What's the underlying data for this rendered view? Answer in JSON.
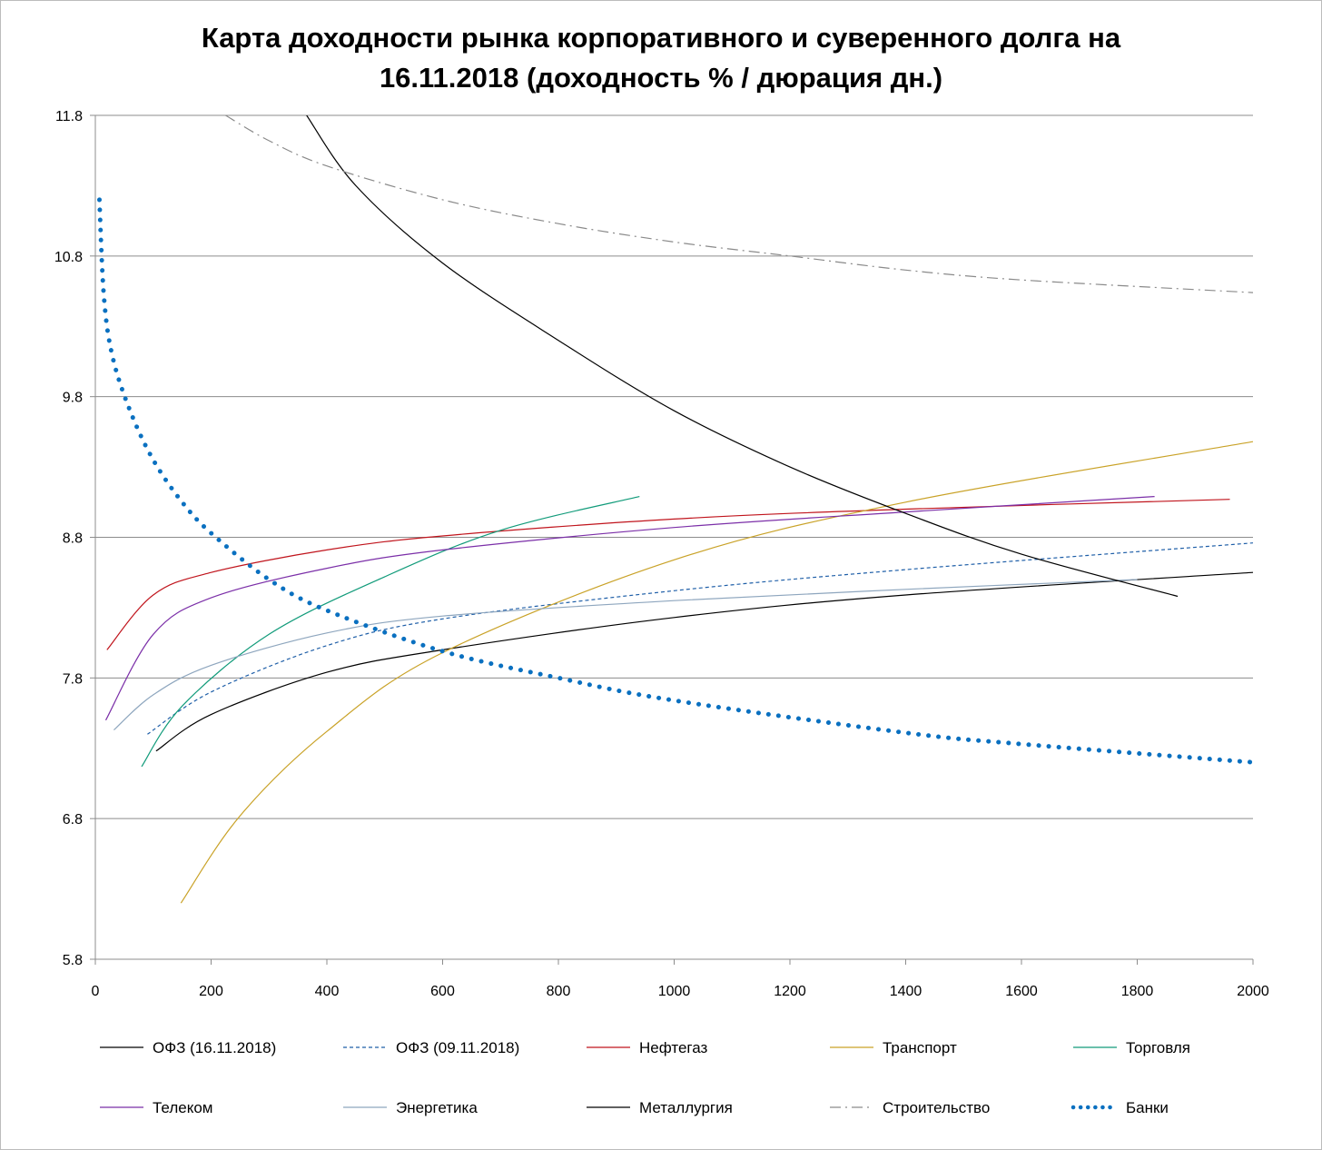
{
  "chart_data": {
    "type": "line",
    "title_line1": "Карта доходности рынка корпоративного и суверенного долга на",
    "title_line2": "16.11.2018 (доходность % / дюрация дн.)",
    "xlabel": "",
    "ylabel": "",
    "xlim": [
      0,
      2000
    ],
    "ylim": [
      5.8,
      11.8
    ],
    "x_ticks": [
      "0",
      "200",
      "400",
      "600",
      "800",
      "1000",
      "1200",
      "1400",
      "1600",
      "1800",
      "2000"
    ],
    "y_ticks": [
      "5.8",
      "6.8",
      "7.8",
      "8.8",
      "9.8",
      "10.8",
      "11.8"
    ],
    "grid": "horizontal",
    "legend_position": "bottom",
    "series": [
      {
        "name": "ОФЗ (16.11.2018)",
        "color": "#000000",
        "dash": "solid",
        "width": 1.2,
        "points": [
          [
            105,
            7.28
          ],
          [
            200,
            7.54
          ],
          [
            400,
            7.84
          ],
          [
            600,
            8.0
          ],
          [
            1000,
            8.23
          ],
          [
            1400,
            8.39
          ],
          [
            2000,
            8.55
          ]
        ]
      },
      {
        "name": "ОФЗ (09.11.2018)",
        "color": "#1f5fa8",
        "dash": "dashed",
        "width": 1.2,
        "points": [
          [
            90,
            7.4
          ],
          [
            200,
            7.7
          ],
          [
            400,
            8.03
          ],
          [
            600,
            8.22
          ],
          [
            1000,
            8.42
          ],
          [
            1400,
            8.57
          ],
          [
            2000,
            8.76
          ]
        ]
      },
      {
        "name": "Нефтегаз",
        "color": "#c0141c",
        "dash": "solid",
        "width": 1.2,
        "points": [
          [
            20,
            8.0
          ],
          [
            100,
            8.39
          ],
          [
            200,
            8.55
          ],
          [
            400,
            8.71
          ],
          [
            600,
            8.81
          ],
          [
            1000,
            8.93
          ],
          [
            1400,
            9.0
          ],
          [
            1960,
            9.07
          ]
        ]
      },
      {
        "name": "Транспорт",
        "color": "#c9a227",
        "dash": "solid",
        "width": 1.2,
        "points": [
          [
            148,
            6.2
          ],
          [
            250,
            6.82
          ],
          [
            400,
            7.42
          ],
          [
            600,
            7.98
          ],
          [
            1000,
            8.64
          ],
          [
            1400,
            9.05
          ],
          [
            2000,
            9.48
          ]
        ]
      },
      {
        "name": "Торговля",
        "color": "#119b7a",
        "dash": "solid",
        "width": 1.2,
        "points": [
          [
            80,
            7.17
          ],
          [
            150,
            7.6
          ],
          [
            300,
            8.11
          ],
          [
            500,
            8.52
          ],
          [
            700,
            8.85
          ],
          [
            940,
            9.09
          ]
        ]
      },
      {
        "name": "Телеком",
        "color": "#7b2fa8",
        "dash": "solid",
        "width": 1.2,
        "points": [
          [
            18,
            7.5
          ],
          [
            100,
            8.11
          ],
          [
            200,
            8.37
          ],
          [
            400,
            8.58
          ],
          [
            600,
            8.71
          ],
          [
            1000,
            8.87
          ],
          [
            1400,
            8.98
          ],
          [
            1830,
            9.09
          ]
        ]
      },
      {
        "name": "Энергетика",
        "color": "#8ea6be",
        "dash": "solid",
        "width": 1.2,
        "points": [
          [
            32,
            7.43
          ],
          [
            100,
            7.68
          ],
          [
            200,
            7.89
          ],
          [
            400,
            8.12
          ],
          [
            600,
            8.24
          ],
          [
            1000,
            8.35
          ],
          [
            1400,
            8.43
          ],
          [
            1800,
            8.5
          ]
        ]
      },
      {
        "name": "Металлургия",
        "color": "#000000",
        "dash": "solid",
        "width": 1.2,
        "points": [
          [
            365,
            11.8
          ],
          [
            450,
            11.3
          ],
          [
            600,
            10.75
          ],
          [
            800,
            10.2
          ],
          [
            1000,
            9.7
          ],
          [
            1200,
            9.3
          ],
          [
            1400,
            8.97
          ],
          [
            1600,
            8.68
          ],
          [
            1870,
            8.38
          ]
        ]
      },
      {
        "name": "Строительство",
        "color": "#8a8a8a",
        "dash": "dashdot",
        "width": 1.2,
        "points": [
          [
            225,
            11.8
          ],
          [
            300,
            11.62
          ],
          [
            400,
            11.44
          ],
          [
            600,
            11.2
          ],
          [
            800,
            11.03
          ],
          [
            1000,
            10.9
          ],
          [
            1200,
            10.8
          ],
          [
            1400,
            10.7
          ],
          [
            1600,
            10.63
          ],
          [
            2000,
            10.54
          ]
        ]
      },
      {
        "name": "Банки",
        "color": "#0a70c0",
        "dash": "dotted",
        "width": 5,
        "points": [
          [
            7,
            11.2
          ],
          [
            15,
            10.5
          ],
          [
            30,
            10.08
          ],
          [
            60,
            9.7
          ],
          [
            100,
            9.35
          ],
          [
            150,
            9.05
          ],
          [
            200,
            8.83
          ],
          [
            300,
            8.5
          ],
          [
            400,
            8.28
          ],
          [
            600,
            7.99
          ],
          [
            800,
            7.8
          ],
          [
            1000,
            7.64
          ],
          [
            1400,
            7.41
          ],
          [
            1600,
            7.33
          ],
          [
            2000,
            7.2
          ]
        ]
      }
    ]
  }
}
